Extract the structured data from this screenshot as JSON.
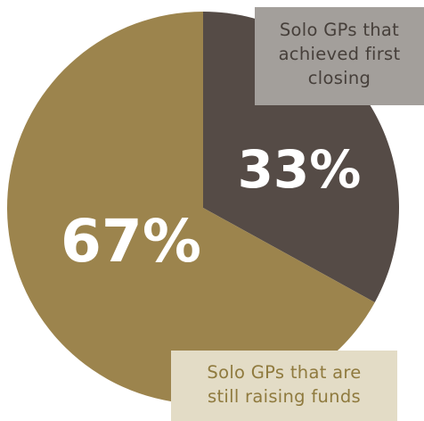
{
  "chart_data": {
    "type": "pie",
    "slices": [
      {
        "label": "Solo GPs that achieved first closing",
        "value": 33,
        "display": "33%",
        "color": "#554b46",
        "callout_lines": [
          "Solo GPs that",
          "achieved first",
          "closing"
        ]
      },
      {
        "label": "Solo GPs that are still raising funds",
        "value": 67,
        "display": "67%",
        "color": "#9c844d",
        "callout_lines": [
          "Solo GPs that are",
          "still raising funds"
        ]
      }
    ],
    "start_angle_deg": 0,
    "direction": "clockwise"
  },
  "colors": {
    "callout_top_bg": "#a39f9b",
    "callout_top_text": "#463f3a",
    "callout_bottom_bg": "#e3dcc6",
    "callout_bottom_text": "#8f7a3e"
  }
}
